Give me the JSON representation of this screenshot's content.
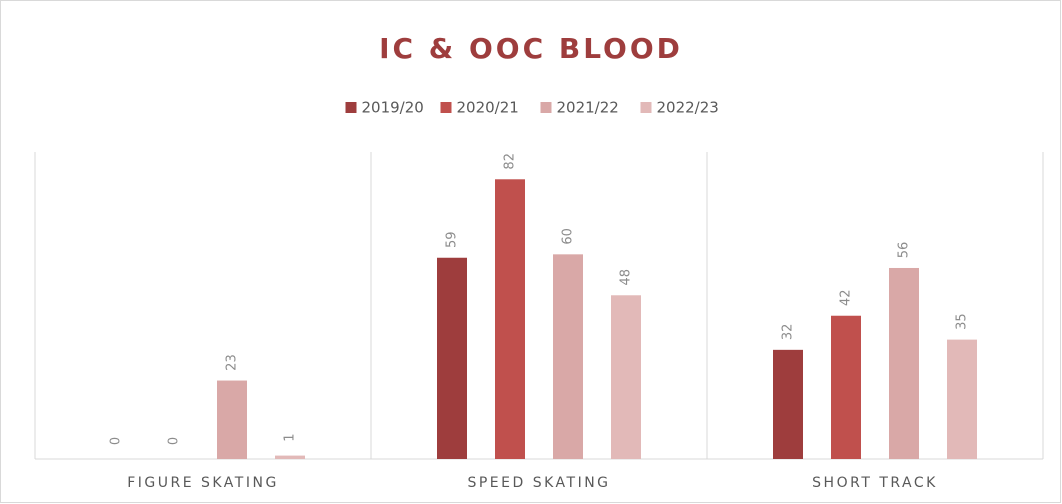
{
  "chart_data": {
    "type": "bar",
    "title": "IC & OOC BLOOD",
    "categories": [
      "FIGURE SKATING",
      "SPEED SKATING",
      "SHORT TRACK"
    ],
    "series": [
      {
        "name": "2019/20",
        "color": "#9e3d3d",
        "values": [
          0,
          59,
          32
        ]
      },
      {
        "name": "2020/21",
        "color": "#c0504d",
        "values": [
          0,
          82,
          42
        ]
      },
      {
        "name": "2021/22",
        "color": "#d9a8a7",
        "values": [
          23,
          60,
          56
        ]
      },
      {
        "name": "2022/23",
        "color": "#e2b9b8",
        "values": [
          1,
          48,
          35
        ]
      }
    ],
    "ylim": [
      0,
      90
    ],
    "legend": "top"
  }
}
